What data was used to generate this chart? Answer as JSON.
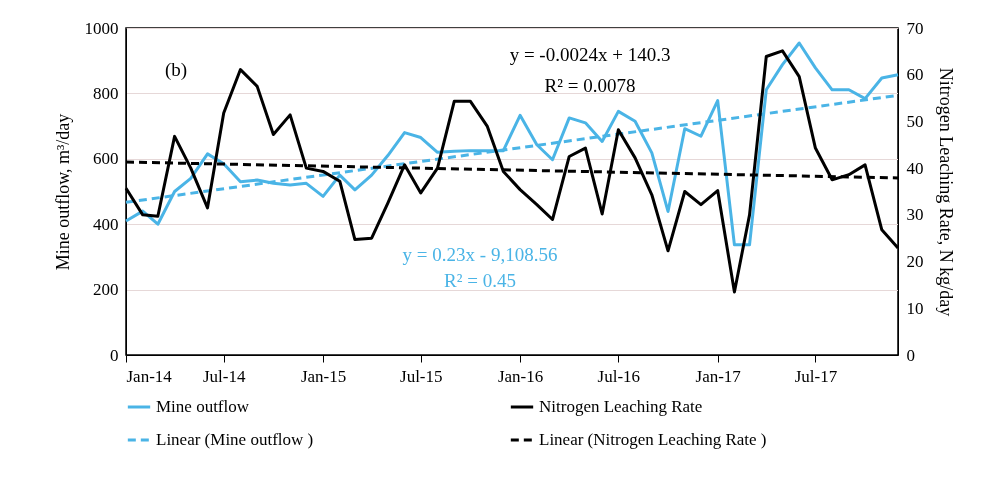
{
  "chart_data": {
    "type": "line",
    "xlabel": null,
    "ylabel": "Mine outflow, m³/day",
    "y2label": "Nitrogen Leaching Rate, N kg/day",
    "x": [
      "2014-01",
      "2014-02",
      "2014-03",
      "2014-04",
      "2014-05",
      "2014-06",
      "2014-07",
      "2014-08",
      "2014-09",
      "2014-10",
      "2014-11",
      "2014-12",
      "2015-01",
      "2015-02",
      "2015-03",
      "2015-04",
      "2015-05",
      "2015-06",
      "2015-07",
      "2015-08",
      "2015-09",
      "2015-10",
      "2015-11",
      "2015-12",
      "2016-01",
      "2016-02",
      "2016-03",
      "2016-04",
      "2016-05",
      "2016-06",
      "2016-07",
      "2016-08",
      "2016-09",
      "2016-10",
      "2016-11",
      "2016-12",
      "2017-01",
      "2017-02",
      "2017-03",
      "2017-04",
      "2017-05",
      "2017-06",
      "2017-07",
      "2017-08",
      "2017-09",
      "2017-10",
      "2017-11",
      "2017-12"
    ],
    "series": [
      {
        "name": "Mine outflow",
        "color": "#4ab4e6",
        "line_style": "solid",
        "values": [
          410,
          440,
          400,
          500,
          540,
          615,
          585,
          530,
          535,
          525,
          520,
          525,
          485,
          550,
          505,
          550,
          610,
          680,
          665,
          620,
          623,
          625,
          625,
          625,
          733,
          643,
          597,
          725,
          710,
          653,
          745,
          715,
          618,
          439,
          692,
          669,
          778,
          337,
          337,
          811,
          888,
          954,
          878,
          811,
          811,
          784,
          847,
          857
        ]
      },
      {
        "name": "Nitrogen Leaching Rate",
        "color": "#000000",
        "line_style": "solid",
        "axis": "y2",
        "values": [
          35.7,
          30.0,
          29.7,
          46.8,
          40.0,
          31.5,
          51.8,
          61.1,
          57.5,
          47.2,
          51.4,
          40.0,
          39.3,
          37.2,
          24.7,
          25.0,
          32.5,
          40.7,
          34.7,
          40.0,
          54.3,
          54.3,
          49.0,
          39.3,
          35.4,
          32.2,
          29.0,
          42.5,
          44.3,
          30.2,
          48.2,
          42.2,
          34.3,
          22.3,
          35.0,
          32.2,
          35.2,
          13.5,
          30.0,
          63.9,
          65.1,
          59.6,
          44.3,
          37.5,
          38.6,
          40.7,
          26.8,
          22.9
        ]
      },
      {
        "name": "Linear (Mine outflow )",
        "color": "#4ab4e6",
        "line_style": "dashed",
        "type": "line",
        "x": [
          "2014-01",
          "2017-12"
        ],
        "values": [
          467,
          794
        ]
      },
      {
        "name": "Linear (Nitrogen Leaching Rate )",
        "color": "#000000",
        "line_style": "dashed",
        "type": "line",
        "axis": "y2",
        "x": [
          "2014-01",
          "2017-12"
        ],
        "values": [
          41.3,
          37.9
        ]
      }
    ],
    "xlim": [
      "2014-01",
      "2017-12"
    ],
    "xticks": [
      {
        "value": "2014-01",
        "label": "Jan-14"
      },
      {
        "value": "2014-07",
        "label": "Jul-14"
      },
      {
        "value": "2015-01",
        "label": "Jan-15"
      },
      {
        "value": "2015-07",
        "label": "Jul-15"
      },
      {
        "value": "2016-01",
        "label": "Jan-16"
      },
      {
        "value": "2016-07",
        "label": "Jul-16"
      },
      {
        "value": "2017-01",
        "label": "Jan-17"
      },
      {
        "value": "2017-07",
        "label": "Jul-17"
      }
    ],
    "ylim": [
      0,
      1000
    ],
    "yticks": [
      0,
      200,
      400,
      600,
      800,
      1000
    ],
    "y2lim": [
      0,
      70
    ],
    "y2ticks": [
      0,
      10,
      20,
      30,
      40,
      50,
      60,
      70
    ],
    "grid": "y",
    "legend": "bottom",
    "annotations": [
      "(b)",
      "y = -0.0024x + 140.3",
      "R² = 0.0078",
      "y = 0.23x - 9,108.56",
      "R² = 0.45"
    ]
  }
}
